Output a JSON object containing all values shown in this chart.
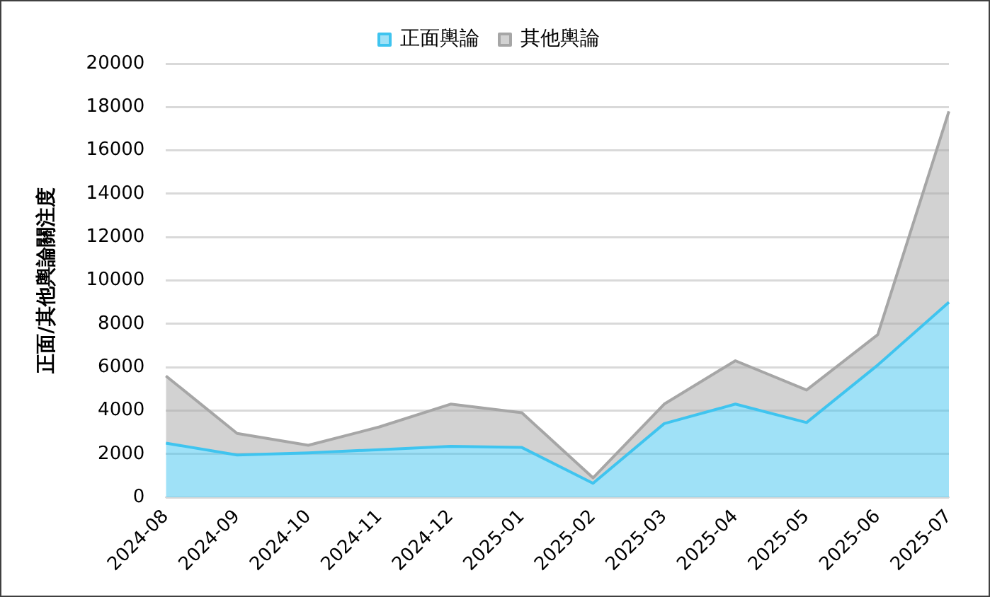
{
  "chart_data": {
    "type": "area",
    "stacked": true,
    "ylabel": "正面/其他輿論關注度",
    "categories": [
      "2024-08",
      "2024-09",
      "2024-10",
      "2024-11",
      "2024-12",
      "2025-01",
      "2025-02",
      "2025-03",
      "2025-04",
      "2025-05",
      "2025-06",
      "2025-07"
    ],
    "series": [
      {
        "name": "正面輿論",
        "color": "#3fc4ef",
        "values": [
          2500,
          1950,
          2050,
          2200,
          2350,
          2300,
          650,
          3400,
          4300,
          3450,
          6100,
          9000
        ]
      },
      {
        "name": "其他輿論",
        "color": "#a6a6a6",
        "values": [
          3100,
          1000,
          350,
          1050,
          1950,
          1600,
          250,
          900,
          2000,
          1500,
          1400,
          8800
        ]
      }
    ],
    "ylim": [
      0,
      20000
    ],
    "yticks": [
      0,
      2000,
      4000,
      6000,
      8000,
      10000,
      12000,
      14000,
      16000,
      18000,
      20000
    ],
    "grid": "y",
    "legend": "top",
    "marker": "none"
  }
}
